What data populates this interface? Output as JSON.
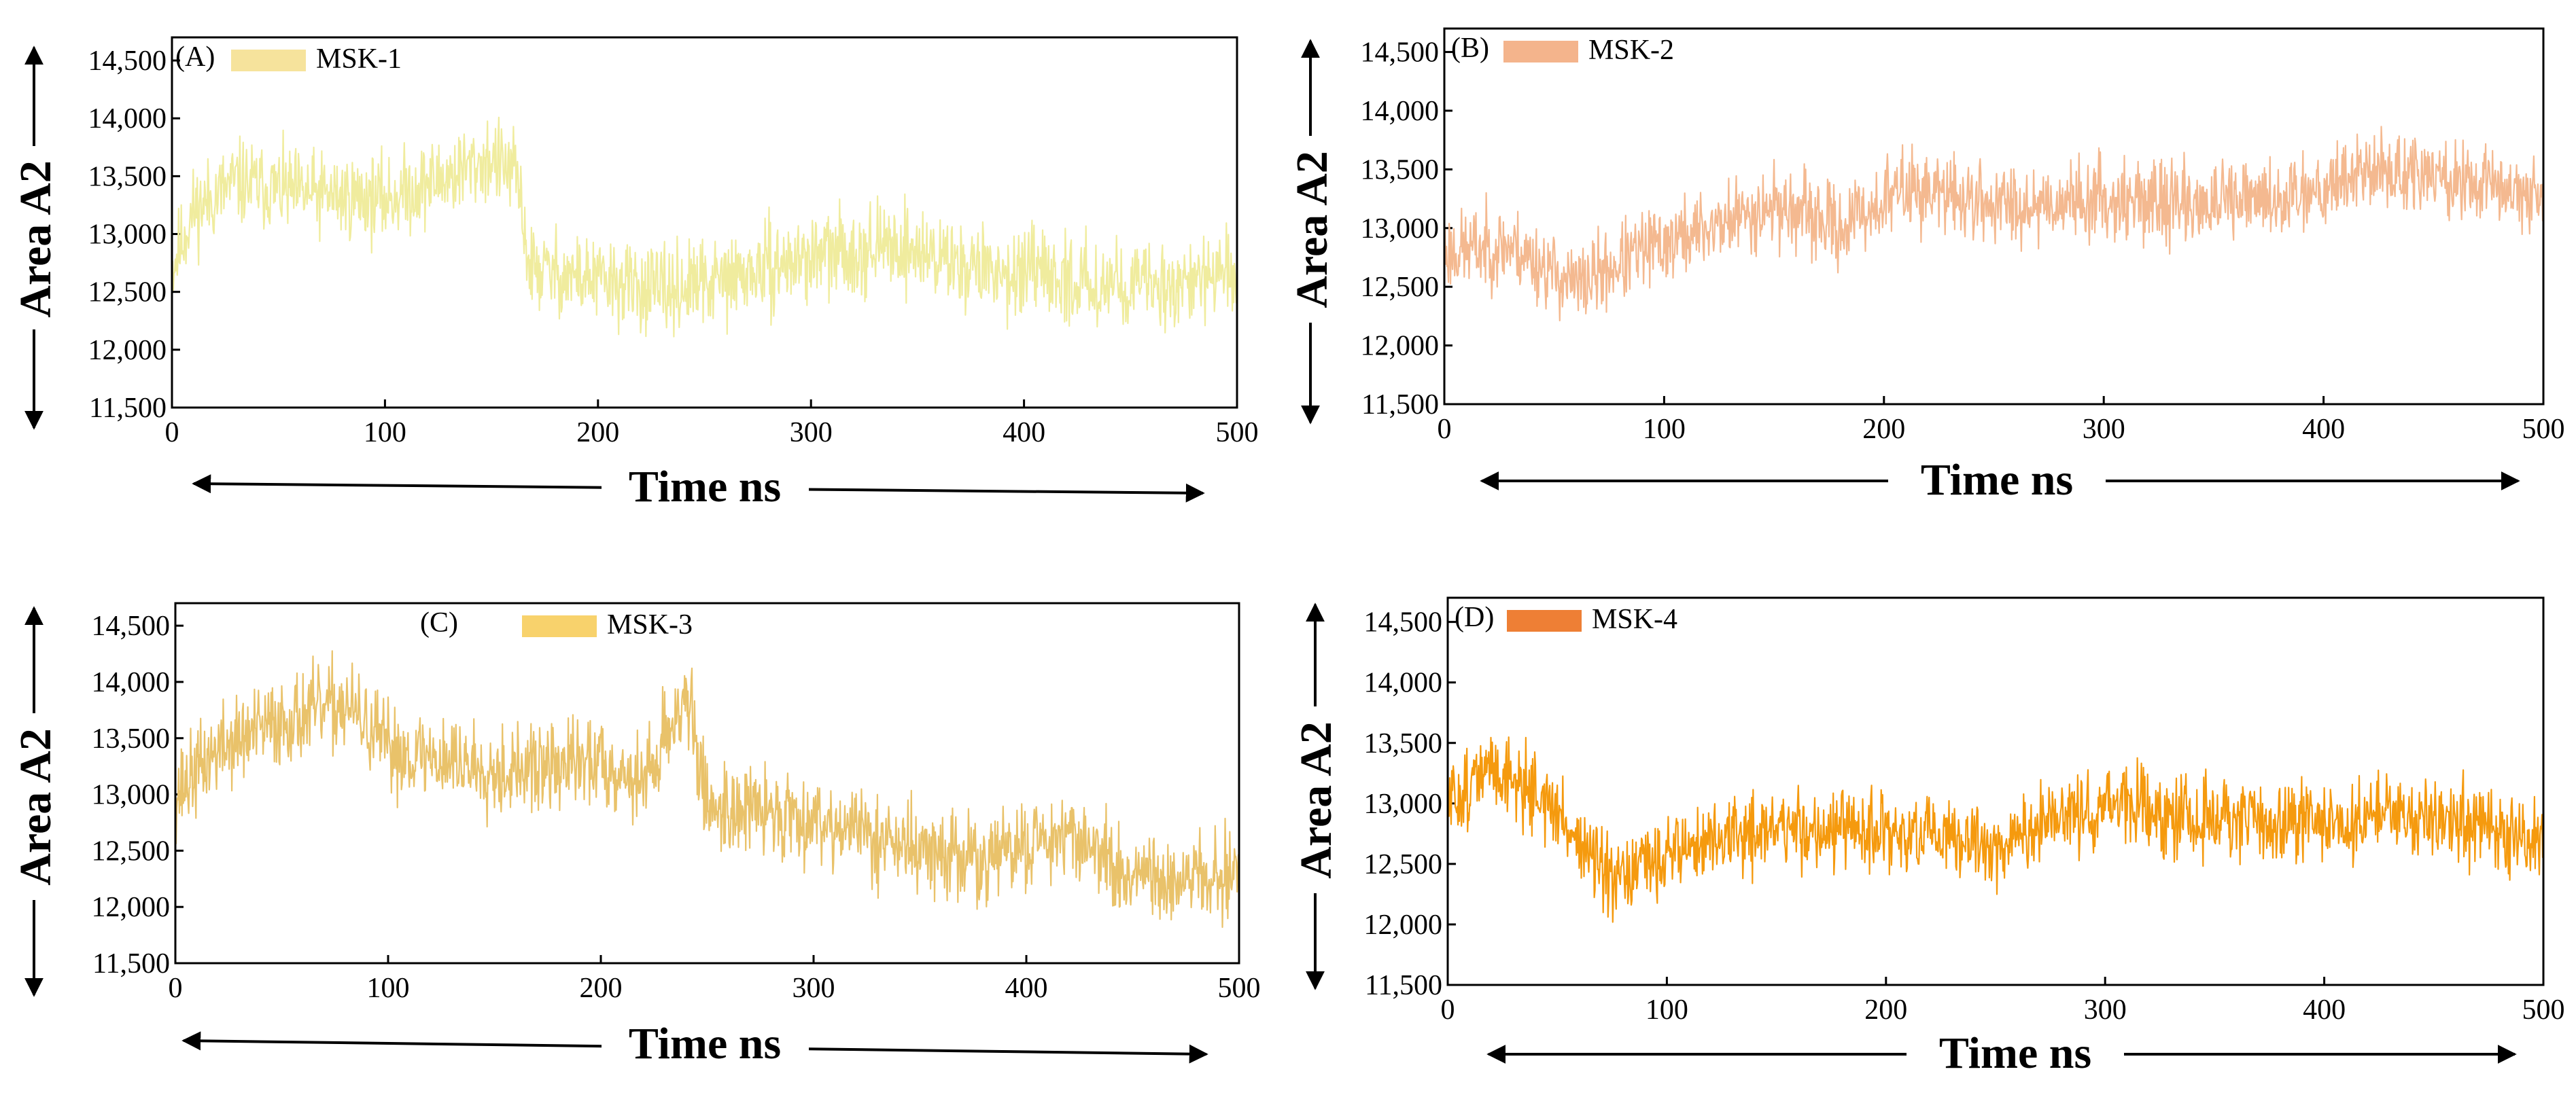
{
  "chart_data": [
    {
      "type": "line",
      "panel": "(A)",
      "legend": "MSK-1",
      "color": "#f0ec9e",
      "legend_color": "#f6e39c",
      "title": "",
      "xlabel": "Time ns",
      "ylabel": "Area A2",
      "xlim": [
        0,
        500
      ],
      "ylim": [
        11500,
        14700
      ],
      "xticks": [
        0,
        100,
        200,
        300,
        400,
        500
      ],
      "xtick_labels": [
        "0",
        "100",
        "200",
        "300",
        "400",
        "500"
      ],
      "yticks": [
        11500,
        12000,
        12500,
        13000,
        13500,
        14000,
        14500
      ],
      "ytick_labels": [
        "11,500",
        "12,000",
        "12,500",
        "13,000",
        "13,500",
        "14,000",
        "14,500"
      ],
      "legend_position": "top-left",
      "noise": 260,
      "seed": 11,
      "x_anchors": [
        0,
        10,
        30,
        60,
        100,
        130,
        150,
        162,
        168,
        200,
        230,
        260,
        300,
        340,
        380,
        420,
        460,
        500
      ],
      "y_anchors": [
        12700,
        13200,
        13450,
        13350,
        13300,
        13500,
        13650,
        13500,
        12700,
        12600,
        12500,
        12600,
        12800,
        12900,
        12700,
        12600,
        12550,
        12650
      ]
    },
    {
      "type": "line",
      "panel": "(B)",
      "legend": "MSK-2",
      "color": "#f4b990",
      "legend_color": "#f4b48c",
      "title": "",
      "xlabel": "Time ns",
      "ylabel": "Area A2",
      "xlim": [
        0,
        500
      ],
      "ylim": [
        11500,
        14700
      ],
      "xticks": [
        0,
        100,
        200,
        300,
        400,
        500
      ],
      "xtick_labels": [
        "0",
        "100",
        "200",
        "300",
        "400",
        "500"
      ],
      "yticks": [
        11500,
        12000,
        12500,
        13000,
        13500,
        14000,
        14500
      ],
      "ytick_labels": [
        "11,500",
        "12,000",
        "12,500",
        "13,000",
        "13,500",
        "14,000",
        "14,500"
      ],
      "legend_position": "top-left",
      "noise": 240,
      "seed": 23,
      "x_anchors": [
        0,
        30,
        60,
        90,
        120,
        150,
        180,
        210,
        250,
        300,
        350,
        380,
        420,
        460,
        500
      ],
      "y_anchors": [
        12800,
        12850,
        12500,
        12800,
        13000,
        13200,
        13000,
        13350,
        13200,
        13250,
        13200,
        13250,
        13500,
        13400,
        13300
      ]
    },
    {
      "type": "line",
      "panel": "(C)",
      "legend": "MSK-3",
      "color": "#e9c26a",
      "legend_color": "#f8d26c",
      "title": "",
      "xlabel": "Time ns",
      "ylabel": "Area A2",
      "xlim": [
        0,
        500
      ],
      "ylim": [
        11500,
        14700
      ],
      "xticks": [
        0,
        100,
        200,
        300,
        400,
        500
      ],
      "xtick_labels": [
        "0",
        "100",
        "200",
        "300",
        "400",
        "500"
      ],
      "yticks": [
        11500,
        12000,
        12500,
        13000,
        13500,
        14000,
        14500
      ],
      "ytick_labels": [
        "11,500",
        "12,000",
        "12,500",
        "13,000",
        "13,500",
        "14,000",
        "14,500"
      ],
      "legend_position": "top-center",
      "noise": 280,
      "seed": 37,
      "x_anchors": [
        0,
        20,
        50,
        80,
        100,
        130,
        160,
        200,
        220,
        240,
        250,
        300,
        350,
        380,
        420,
        450,
        500
      ],
      "y_anchors": [
        13000,
        13400,
        13650,
        13800,
        13400,
        13300,
        13200,
        13300,
        13100,
        13900,
        12900,
        12800,
        12500,
        12400,
        12700,
        12200,
        12300
      ]
    },
    {
      "type": "line",
      "panel": "(D)",
      "legend": "MSK-4",
      "color": "#f59a0e",
      "legend_color": "#ee7f35",
      "title": "",
      "xlabel": "Time ns",
      "ylabel": "Area A2",
      "xlim": [
        0,
        500
      ],
      "ylim": [
        11500,
        14700
      ],
      "xticks": [
        0,
        100,
        200,
        300,
        400,
        500
      ],
      "xtick_labels": [
        "0",
        "100",
        "200",
        "300",
        "400",
        "500"
      ],
      "yticks": [
        11500,
        12000,
        12500,
        13000,
        13500,
        14000,
        14500
      ],
      "ytick_labels": [
        "11,500",
        "12,000",
        "12,500",
        "13,000",
        "13,500",
        "14,000",
        "14,500"
      ],
      "legend_position": "top-left",
      "noise": 230,
      "seed": 51,
      "x_anchors": [
        0,
        20,
        40,
        60,
        75,
        100,
        150,
        200,
        250,
        300,
        350,
        400,
        450,
        500
      ],
      "y_anchors": [
        13000,
        13300,
        13100,
        12700,
        12300,
        12600,
        12800,
        12750,
        12650,
        13000,
        12850,
        12850,
        12900,
        12700
      ]
    }
  ]
}
